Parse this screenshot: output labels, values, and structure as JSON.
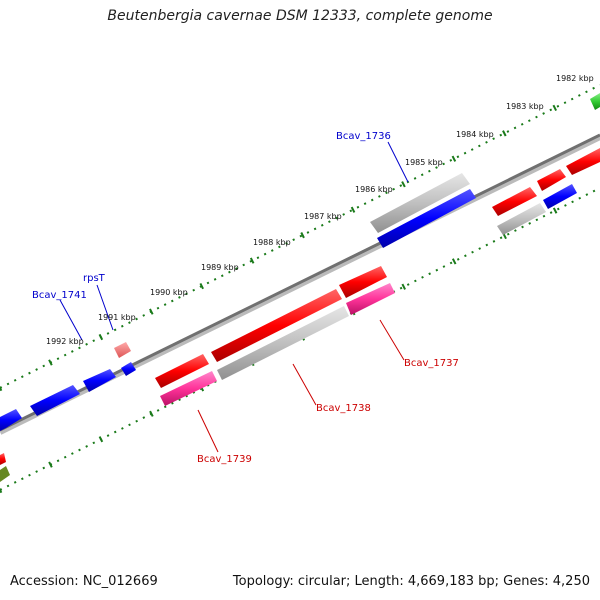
{
  "title": "Beutenbergia cavernae DSM 12333, complete genome",
  "footer": {
    "accession": "Accession: NC_012669",
    "summary": "Topology: circular; Length: 4,669,183 bp; Genes: 4,250"
  },
  "colors": {
    "backbone": "#7a7a7a",
    "tick": "#1a7a1a",
    "forward_cds": "#ff0000",
    "reverse_cds": "#0000ff",
    "pseudo": "#c0c0c0",
    "rna": "#ff3399",
    "other_green": "#33cc33",
    "olive": "#668822",
    "label_blue": "#0000cc",
    "label_red": "#cc0000"
  },
  "ruler": {
    "unit": "kbp",
    "ticks": [
      {
        "label": "1982 kbp"
      },
      {
        "label": "1983 kbp"
      },
      {
        "label": "1984 kbp"
      },
      {
        "label": "1985 kbp"
      },
      {
        "label": "1986 kbp"
      },
      {
        "label": "1987 kbp"
      },
      {
        "label": "1988 kbp"
      },
      {
        "label": "1989 kbp"
      },
      {
        "label": "1990 kbp"
      },
      {
        "label": "1991 kbp"
      },
      {
        "label": "1992 kbp"
      }
    ]
  },
  "gene_labels": [
    {
      "text": "Bcav_1736",
      "color": "blue"
    },
    {
      "text": "rpsT",
      "color": "blue"
    },
    {
      "text": "Bcav_1741",
      "color": "blue"
    },
    {
      "text": "Bcav_1737",
      "color": "red"
    },
    {
      "text": "Bcav_1738",
      "color": "red"
    },
    {
      "text": "Bcav_1739",
      "color": "red"
    }
  ]
}
